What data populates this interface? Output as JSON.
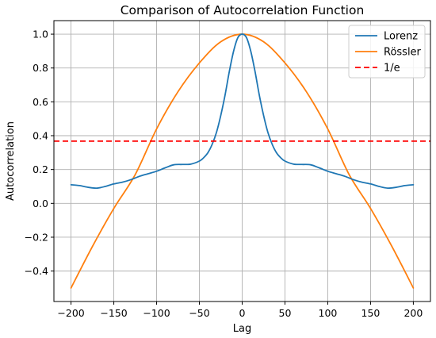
{
  "chart_data": {
    "type": "line",
    "title": "Comparison of Autocorrelation Function",
    "xlabel": "Lag",
    "ylabel": "Autocorrelation",
    "xlim": [
      -220,
      220
    ],
    "ylim": [
      -0.58,
      1.08
    ],
    "xticks": [
      -200,
      -150,
      -100,
      -50,
      0,
      50,
      100,
      150,
      200
    ],
    "yticks": [
      -0.4,
      -0.2,
      0.0,
      0.2,
      0.4,
      0.6,
      0.8,
      1.0
    ],
    "xtick_labels": [
      "−200",
      "−150",
      "−100",
      "−50",
      "0",
      "50",
      "100",
      "150",
      "200"
    ],
    "ytick_labels": [
      "−0.4",
      "−0.2",
      "0.0",
      "0.2",
      "0.4",
      "0.6",
      "0.8",
      "1.0"
    ],
    "grid": true,
    "legend_position": "top-right",
    "series": [
      {
        "name": "Lorenz",
        "color": "#1f77b4",
        "style": "solid",
        "x": [
          -200,
          -190,
          -180,
          -170,
          -160,
          -150,
          -140,
          -130,
          -120,
          -110,
          -100,
          -90,
          -80,
          -70,
          -60,
          -50,
          -45,
          -40,
          -35,
          -30,
          -25,
          -20,
          -15,
          -10,
          -5,
          0,
          5,
          10,
          15,
          20,
          25,
          30,
          35,
          40,
          45,
          50,
          60,
          70,
          80,
          90,
          100,
          110,
          120,
          130,
          140,
          150,
          160,
          170,
          180,
          190,
          200
        ],
        "values": [
          0.11,
          0.105,
          0.095,
          0.09,
          0.1,
          0.115,
          0.125,
          0.14,
          0.16,
          0.175,
          0.19,
          0.21,
          0.228,
          0.23,
          0.232,
          0.25,
          0.27,
          0.3,
          0.35,
          0.42,
          0.52,
          0.64,
          0.78,
          0.9,
          0.98,
          1.0,
          0.98,
          0.9,
          0.78,
          0.64,
          0.52,
          0.42,
          0.35,
          0.3,
          0.27,
          0.25,
          0.232,
          0.23,
          0.228,
          0.21,
          0.19,
          0.175,
          0.16,
          0.14,
          0.125,
          0.115,
          0.1,
          0.09,
          0.095,
          0.105,
          0.11
        ]
      },
      {
        "name": "Rössler",
        "color": "#ff7f0e",
        "style": "solid",
        "x": [
          -200,
          -175,
          -150,
          -125,
          -100,
          -75,
          -50,
          -25,
          0,
          25,
          50,
          75,
          100,
          125,
          150,
          175,
          200
        ],
        "values": [
          -0.5,
          -0.255,
          -0.03,
          0.17,
          0.44,
          0.66,
          0.83,
          0.955,
          1.0,
          0.955,
          0.83,
          0.66,
          0.44,
          0.17,
          -0.03,
          -0.255,
          -0.5
        ]
      },
      {
        "name": "1/e",
        "color": "#ff0000",
        "style": "dashed",
        "x": [
          -220,
          220
        ],
        "values": [
          0.3679,
          0.3679
        ]
      }
    ]
  }
}
